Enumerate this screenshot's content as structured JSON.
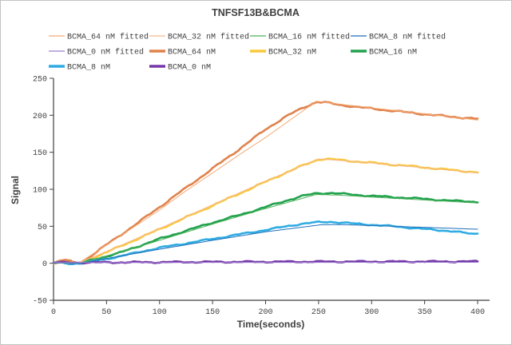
{
  "chart_data": {
    "type": "line",
    "title": "TNFSF13B&BCMA",
    "xlabel": "Time(seconds)",
    "ylabel": "Signal",
    "xlim": [
      0,
      400
    ],
    "ylim": [
      -50,
      250
    ],
    "x_ticks": [
      0,
      50,
      100,
      150,
      200,
      250,
      300,
      350,
      400
    ],
    "y_ticks": [
      -50,
      0,
      50,
      100,
      150,
      200,
      250
    ],
    "grid": false,
    "legend_position": "top",
    "axis_color": "#404040",
    "series": [
      {
        "name": "BCMA_64 nM",
        "color": "#e0824c",
        "kind": "raw",
        "stroke_width": 2.6,
        "noise_amp": 1.4,
        "seed": 1,
        "points": [
          [
            0,
            1.5
          ],
          [
            4,
            2.5
          ],
          [
            8,
            4
          ],
          [
            12,
            4.5
          ],
          [
            16,
            2.5
          ],
          [
            20,
            0
          ],
          [
            24,
            0
          ],
          [
            32,
            7
          ],
          [
            50,
            25
          ],
          [
            75,
            50
          ],
          [
            100,
            76
          ],
          [
            125,
            102
          ],
          [
            150,
            128
          ],
          [
            175,
            154
          ],
          [
            200,
            181
          ],
          [
            220,
            199
          ],
          [
            235,
            210
          ],
          [
            248,
            218
          ],
          [
            255,
            217.5
          ],
          [
            270,
            214
          ],
          [
            300,
            209
          ],
          [
            330,
            204.5
          ],
          [
            360,
            200
          ],
          [
            380,
            197.5
          ],
          [
            400,
            195
          ]
        ]
      },
      {
        "name": "BCMA_32 nM",
        "color": "#fac83e",
        "kind": "raw",
        "stroke_width": 2.6,
        "noise_amp": 1.4,
        "seed": 2,
        "points": [
          [
            0,
            0.5
          ],
          [
            6,
            1.5
          ],
          [
            12,
            2
          ],
          [
            18,
            0.5
          ],
          [
            24,
            -0.5
          ],
          [
            40,
            9
          ],
          [
            60,
            21
          ],
          [
            80,
            33.5
          ],
          [
            100,
            46
          ],
          [
            125,
            62
          ],
          [
            150,
            78
          ],
          [
            175,
            94
          ],
          [
            200,
            110
          ],
          [
            220,
            123
          ],
          [
            235,
            132
          ],
          [
            250,
            140.5
          ],
          [
            258,
            141
          ],
          [
            270,
            139.5
          ],
          [
            290,
            137
          ],
          [
            310,
            134.5
          ],
          [
            330,
            132
          ],
          [
            350,
            129.5
          ],
          [
            375,
            126
          ],
          [
            400,
            123
          ]
        ]
      },
      {
        "name": "BCMA_16 nM",
        "color": "#21a24d",
        "kind": "raw",
        "stroke_width": 2.6,
        "noise_amp": 1.3,
        "seed": 3,
        "points": [
          [
            0,
            0.5
          ],
          [
            8,
            1.5
          ],
          [
            16,
            0
          ],
          [
            24,
            -0.5
          ],
          [
            40,
            6
          ],
          [
            60,
            13
          ],
          [
            80,
            23
          ],
          [
            100,
            33
          ],
          [
            125,
            44
          ],
          [
            150,
            55
          ],
          [
            175,
            65
          ],
          [
            200,
            76
          ],
          [
            220,
            85
          ],
          [
            235,
            91
          ],
          [
            248,
            94.5
          ],
          [
            262,
            95
          ],
          [
            275,
            93.5
          ],
          [
            300,
            91
          ],
          [
            325,
            89
          ],
          [
            350,
            87
          ],
          [
            375,
            84.5
          ],
          [
            400,
            83
          ]
        ]
      },
      {
        "name": "BCMA_8 nM",
        "color": "#2face3",
        "kind": "raw",
        "stroke_width": 2.6,
        "noise_amp": 1.2,
        "seed": 4,
        "points": [
          [
            0,
            0.5
          ],
          [
            8,
            1
          ],
          [
            16,
            -0.5
          ],
          [
            28,
            0
          ],
          [
            40,
            3.5
          ],
          [
            60,
            8.5
          ],
          [
            80,
            15
          ],
          [
            100,
            21
          ],
          [
            125,
            27
          ],
          [
            150,
            33
          ],
          [
            175,
            39
          ],
          [
            200,
            45
          ],
          [
            220,
            50
          ],
          [
            235,
            53.5
          ],
          [
            250,
            55.5
          ],
          [
            262,
            56
          ],
          [
            275,
            54.5
          ],
          [
            300,
            52
          ],
          [
            320,
            50
          ],
          [
            340,
            47.5
          ],
          [
            360,
            45
          ],
          [
            375,
            43.5
          ],
          [
            388,
            41
          ],
          [
            395,
            39.5
          ],
          [
            400,
            40.5
          ]
        ]
      },
      {
        "name": "BCMA_0 nM",
        "color": "#7638a8",
        "kind": "raw",
        "stroke_width": 2.6,
        "noise_amp": 1.3,
        "seed": 5,
        "points": [
          [
            0,
            0.8
          ],
          [
            50,
            1.2
          ],
          [
            100,
            1.5
          ],
          [
            150,
            1.8
          ],
          [
            200,
            2
          ],
          [
            250,
            2.2
          ],
          [
            300,
            2.2
          ],
          [
            350,
            2.3
          ],
          [
            400,
            2.4
          ]
        ]
      },
      {
        "name": "BCMA_64 nM fitted",
        "color": "#f3aa76",
        "kind": "fitted",
        "stroke_width": 1,
        "noise_amp": 0,
        "seed": 0,
        "points": [
          [
            0,
            0.5
          ],
          [
            24,
            0.5
          ],
          [
            60,
            34
          ],
          [
            100,
            72
          ],
          [
            125,
            98
          ],
          [
            150,
            122
          ],
          [
            175,
            146.5
          ],
          [
            200,
            170
          ],
          [
            248,
            219
          ],
          [
            270,
            215
          ],
          [
            300,
            210
          ],
          [
            350,
            202
          ],
          [
            400,
            193.5
          ]
        ]
      },
      {
        "name": "BCMA_32 nM fitted",
        "color": "#f5b88c",
        "kind": "fitted",
        "stroke_width": 1,
        "noise_amp": 0,
        "seed": 0,
        "points": [
          [
            0,
            0.5
          ],
          [
            24,
            0.5
          ],
          [
            60,
            22
          ],
          [
            100,
            47
          ],
          [
            150,
            79
          ],
          [
            200,
            111
          ],
          [
            250,
            141
          ],
          [
            270,
            139
          ],
          [
            300,
            135.5
          ],
          [
            350,
            129
          ],
          [
            400,
            122
          ]
        ]
      },
      {
        "name": "BCMA_16 nM fitted",
        "color": "#4caf5a",
        "kind": "fitted",
        "stroke_width": 1,
        "noise_amp": 0,
        "seed": 0,
        "points": [
          [
            0,
            0.5
          ],
          [
            26,
            0.5
          ],
          [
            60,
            14
          ],
          [
            100,
            31
          ],
          [
            150,
            53
          ],
          [
            200,
            74
          ],
          [
            248,
            93
          ],
          [
            270,
            92
          ],
          [
            300,
            89.5
          ],
          [
            350,
            85.5
          ],
          [
            400,
            81.5
          ]
        ]
      },
      {
        "name": "BCMA_8 nM fitted",
        "color": "#1e6fb8",
        "kind": "fitted",
        "stroke_width": 1,
        "noise_amp": 0,
        "seed": 0,
        "points": [
          [
            0,
            0.5
          ],
          [
            28,
            0.5
          ],
          [
            60,
            9
          ],
          [
            100,
            19
          ],
          [
            150,
            31
          ],
          [
            200,
            42.5
          ],
          [
            252,
            52
          ],
          [
            270,
            52.3
          ],
          [
            300,
            51
          ],
          [
            350,
            48.5
          ],
          [
            400,
            46
          ]
        ]
      },
      {
        "name": "BCMA_0 nM fitted",
        "color": "#9b7fd0",
        "kind": "fitted",
        "stroke_width": 1,
        "noise_amp": 0,
        "seed": 0,
        "points": [
          [
            0,
            1
          ],
          [
            400,
            1.3
          ]
        ]
      }
    ],
    "legend": {
      "items": [
        {
          "label": "BCMA_64 nM fitted",
          "color": "#f3aa76",
          "thick": false
        },
        {
          "label": "BCMA_32 nM fitted",
          "color": "#f5b88c",
          "thick": false
        },
        {
          "label": "BCMA_16 nM fitted",
          "color": "#4caf5a",
          "thick": false
        },
        {
          "label": "BCMA_8 nM fitted",
          "color": "#1e6fb8",
          "thick": false
        },
        {
          "label": "BCMA_0 nM fitted",
          "color": "#9b7fd0",
          "thick": false
        },
        {
          "label": "BCMA_64 nM",
          "color": "#e0824c",
          "thick": true
        },
        {
          "label": "BCMA_32 nM",
          "color": "#fac83e",
          "thick": true
        },
        {
          "label": "BCMA_16 nM",
          "color": "#21a24d",
          "thick": true
        },
        {
          "label": "BCMA_8 nM",
          "color": "#2face3",
          "thick": true
        },
        {
          "label": "BCMA_0 nM",
          "color": "#7638a8",
          "thick": true
        }
      ]
    }
  }
}
